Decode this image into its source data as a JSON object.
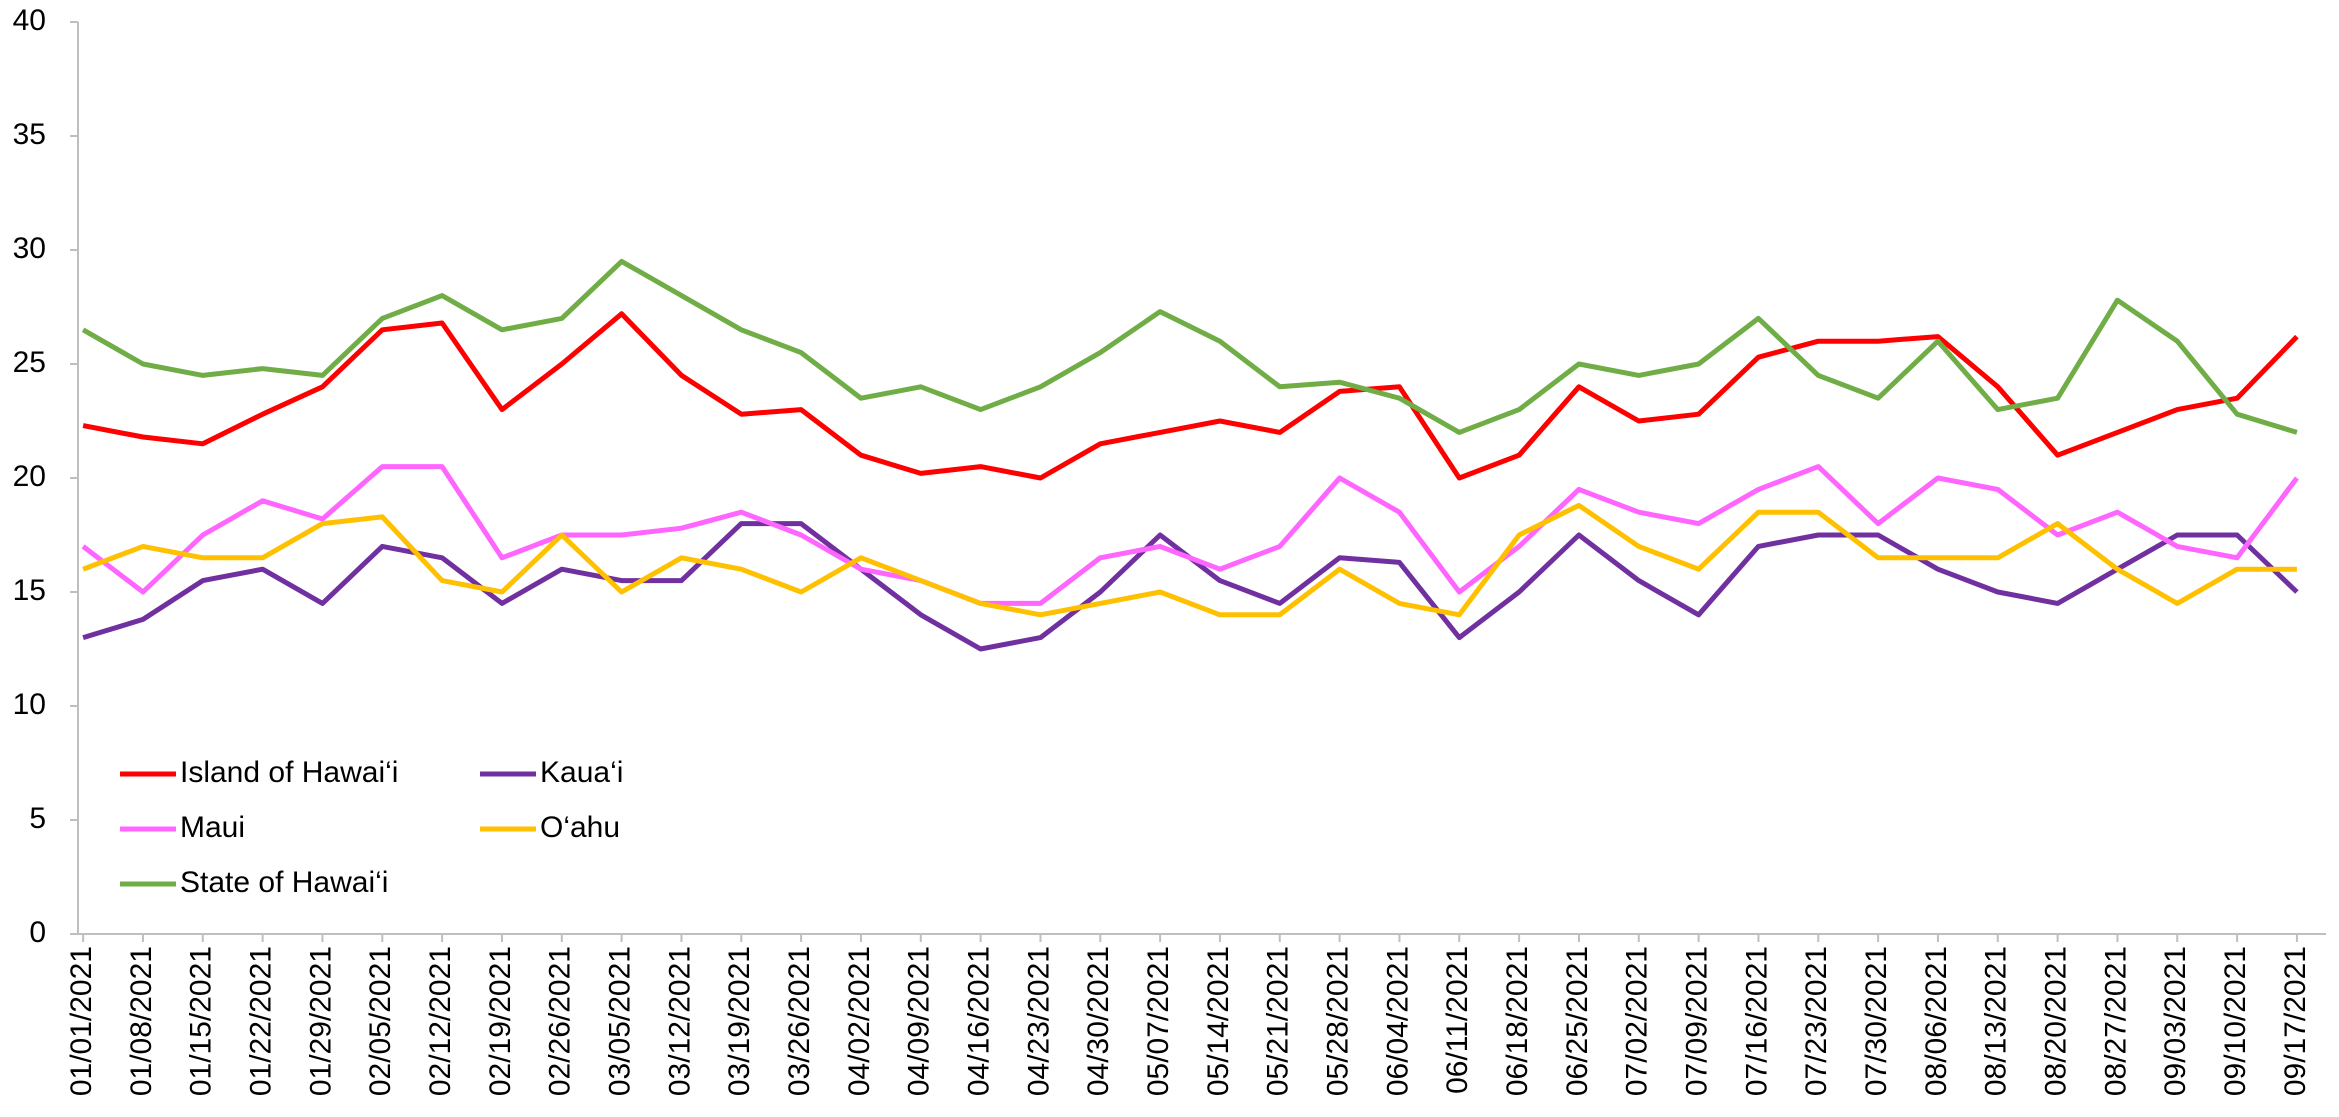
{
  "chart_data": {
    "type": "line",
    "categories": [
      "01/01/2021",
      "01/08/2021",
      "01/15/2021",
      "01/22/2021",
      "01/29/2021",
      "02/05/2021",
      "02/12/2021",
      "02/19/2021",
      "02/26/2021",
      "03/05/2021",
      "03/12/2021",
      "03/19/2021",
      "03/26/2021",
      "04/02/2021",
      "04/09/2021",
      "04/16/2021",
      "04/23/2021",
      "04/30/2021",
      "05/07/2021",
      "05/14/2021",
      "05/21/2021",
      "05/28/2021",
      "06/04/2021",
      "06/11/2021",
      "06/18/2021",
      "06/25/2021",
      "07/02/2021",
      "07/09/2021",
      "07/16/2021",
      "07/23/2021",
      "07/30/2021",
      "08/06/2021",
      "08/13/2021",
      "08/20/2021",
      "08/27/2021",
      "09/03/2021",
      "09/10/2021",
      "09/17/2021"
    ],
    "series": [
      {
        "name": "Island of Hawai‘i",
        "color": "#ff0000",
        "values": [
          22.3,
          21.8,
          21.5,
          22.8,
          24,
          26.5,
          26.8,
          23,
          25,
          27.2,
          24.5,
          22.8,
          23,
          21,
          20.2,
          20.5,
          20,
          21.5,
          22,
          22.5,
          22,
          23.8,
          24,
          20,
          21,
          24,
          22.5,
          22.8,
          25.3,
          26,
          26,
          26.2,
          24,
          21,
          22,
          23,
          23.5,
          26.2
        ]
      },
      {
        "name": "Kaua‘i",
        "color": "#7030a0",
        "values": [
          13,
          13.8,
          15.5,
          16,
          14.5,
          17,
          16.5,
          14.5,
          16,
          15.5,
          15.5,
          18,
          18,
          16,
          14,
          12.5,
          13,
          15,
          17.5,
          15.5,
          14.5,
          16.5,
          16.3,
          13,
          15,
          17.5,
          15.5,
          14,
          17,
          17.5,
          17.5,
          16,
          15,
          14.5,
          16,
          17.5,
          17.5,
          15
        ]
      },
      {
        "name": "Maui",
        "color": "#ff66ff",
        "values": [
          17,
          15,
          17.5,
          19,
          18.2,
          20.5,
          20.5,
          16.5,
          17.5,
          17.5,
          17.8,
          18.5,
          17.5,
          16,
          15.5,
          14.5,
          14.5,
          16.5,
          17,
          16,
          17,
          20,
          18.5,
          15,
          17,
          19.5,
          18.5,
          18,
          19.5,
          20.5,
          18,
          20,
          19.5,
          17.5,
          18.5,
          17,
          16.5,
          20
        ]
      },
      {
        "name": "O‘ahu",
        "color": "#ffc000",
        "values": [
          16,
          17,
          16.5,
          16.5,
          18,
          18.3,
          15.5,
          15,
          17.5,
          15,
          16.5,
          16,
          15,
          16.5,
          15.5,
          14.5,
          14,
          14.5,
          15,
          14,
          14,
          16,
          14.5,
          14,
          17.5,
          18.8,
          17,
          16,
          18.5,
          18.5,
          16.5,
          16.5,
          16.5,
          18,
          16,
          14.5,
          16,
          16
        ]
      },
      {
        "name": "State of Hawai‘i",
        "color": "#70ad47",
        "values": [
          26.5,
          25,
          24.5,
          24.8,
          24.5,
          27,
          28,
          26.5,
          27,
          29.5,
          28,
          26.5,
          25.5,
          23.5,
          24,
          23,
          24,
          25.5,
          27.3,
          26,
          24,
          24.2,
          23.5,
          22,
          23,
          25,
          24.5,
          25,
          27,
          24.5,
          23.5,
          26,
          23,
          23.5,
          27.8,
          26,
          22.8,
          22
        ]
      }
    ],
    "ylim": [
      0,
      40
    ],
    "yticks": [
      0,
      5,
      10,
      15,
      20,
      25,
      30,
      35,
      40
    ],
    "grid": false,
    "legend": "lower left"
  }
}
